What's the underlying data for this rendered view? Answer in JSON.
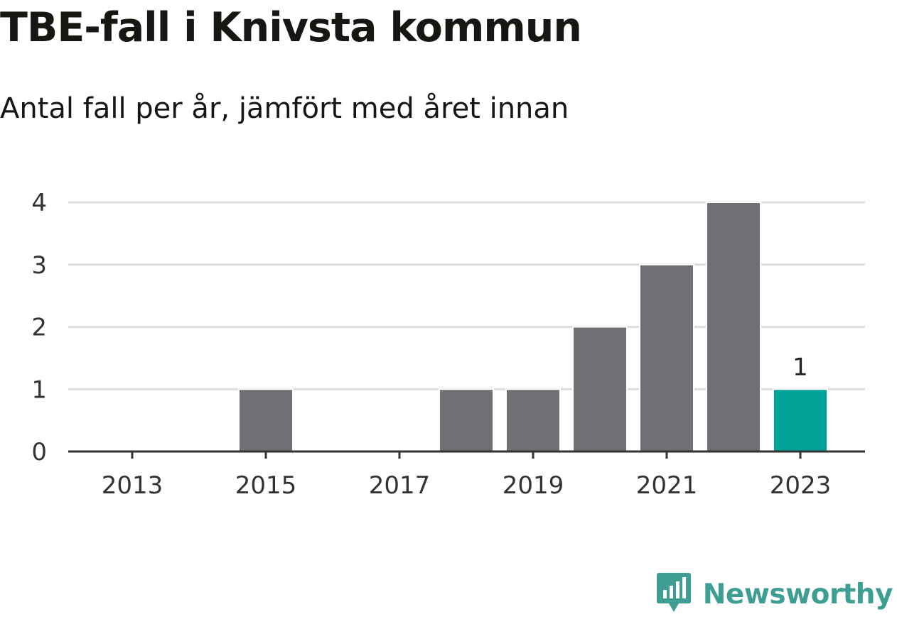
{
  "title": "TBE-fall i Knivsta kommun",
  "subtitle": "Antal fall per år, jämfört med året innan",
  "brand": {
    "name": "Newsworthy",
    "color": "#3f9e94",
    "icon": "newsworthy-logo-icon"
  },
  "colors": {
    "bar": "#706f74",
    "highlight": "#00a298",
    "grid": "#dddddd",
    "axis": "#333333"
  },
  "chart_data": {
    "type": "bar",
    "x": [
      2013,
      2014,
      2015,
      2016,
      2017,
      2018,
      2019,
      2020,
      2021,
      2022,
      2023
    ],
    "values": [
      0,
      0,
      1,
      0,
      0,
      1,
      1,
      2,
      3,
      4,
      1
    ],
    "highlight_index": 10,
    "data_labels": [
      {
        "x": 2023,
        "label": "1"
      }
    ],
    "x_tick_labels": [
      "2013",
      "2015",
      "2017",
      "2019",
      "2021",
      "2023"
    ],
    "y_ticks": [
      0,
      1,
      2,
      3,
      4
    ],
    "ylim": [
      0,
      4
    ],
    "xlabel": "",
    "ylabel": "",
    "grid": true,
    "legend": "none"
  }
}
